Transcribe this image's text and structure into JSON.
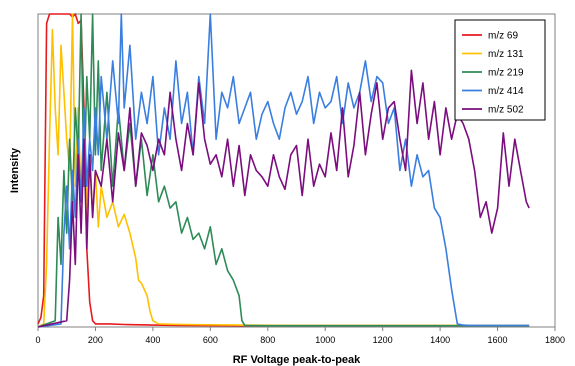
{
  "chart_data": {
    "type": "line",
    "title": "",
    "xlabel": "RF Voltage peak-to-peak",
    "ylabel": "Intensity",
    "xlim": [
      0,
      1800
    ],
    "ylim": [
      0,
      100
    ],
    "xticks": [
      0,
      200,
      400,
      600,
      800,
      1000,
      1200,
      1400,
      1600,
      1800
    ],
    "grid": false,
    "legend_position": "top-right",
    "series": [
      {
        "name": "m/z 69",
        "color": "#e8191d",
        "x": [
          0,
          10,
          20,
          30,
          40,
          50,
          60,
          70,
          80,
          90,
          100,
          110,
          120,
          130,
          140,
          150,
          160,
          170,
          180,
          190,
          200,
          250,
          300,
          400,
          500,
          700,
          900,
          1100,
          1300,
          1500,
          1710
        ],
        "y": [
          1,
          3,
          10,
          97,
          100,
          100,
          100,
          100,
          100,
          100,
          100,
          100,
          99,
          100,
          97,
          98,
          70,
          25,
          8,
          2,
          1,
          1,
          0.8,
          0.6,
          0.5,
          0.4,
          0.4,
          0.4,
          0.4,
          0.4,
          0.4
        ]
      },
      {
        "name": "m/z 131",
        "color": "#ffc000",
        "x": [
          0,
          20,
          30,
          40,
          50,
          60,
          70,
          80,
          90,
          100,
          110,
          120,
          130,
          140,
          150,
          160,
          170,
          180,
          190,
          200,
          210,
          220,
          240,
          260,
          280,
          300,
          320,
          340,
          350,
          360,
          370,
          380,
          390,
          400,
          420,
          500,
          700,
          900,
          1200,
          1710
        ],
        "y": [
          0,
          1,
          20,
          60,
          95,
          70,
          55,
          90,
          75,
          60,
          50,
          100,
          45,
          70,
          40,
          65,
          38,
          55,
          35,
          50,
          32,
          45,
          35,
          40,
          32,
          36,
          30,
          22,
          15,
          14,
          12,
          10,
          5,
          2,
          1,
          0.8,
          0.6,
          0.5,
          0.5,
          0.5
        ]
      },
      {
        "name": "m/z 219",
        "color": "#2e8b57",
        "x": [
          0,
          60,
          70,
          80,
          90,
          100,
          110,
          120,
          130,
          140,
          150,
          160,
          170,
          180,
          190,
          200,
          210,
          220,
          240,
          260,
          280,
          300,
          320,
          340,
          360,
          380,
          400,
          420,
          440,
          460,
          480,
          500,
          520,
          540,
          560,
          580,
          600,
          620,
          640,
          660,
          680,
          700,
          710,
          720,
          800,
          1000,
          1300,
          1600,
          1710
        ],
        "y": [
          0,
          2,
          35,
          20,
          50,
          30,
          60,
          40,
          70,
          55,
          100,
          45,
          80,
          60,
          100,
          55,
          85,
          50,
          75,
          45,
          70,
          50,
          65,
          45,
          60,
          42,
          55,
          40,
          45,
          38,
          40,
          30,
          35,
          28,
          30,
          25,
          32,
          20,
          25,
          18,
          15,
          10,
          2,
          0.5,
          0.4,
          0.4,
          0.4,
          0.4,
          0.4
        ]
      },
      {
        "name": "m/z 414",
        "color": "#3a7fe0",
        "x": [
          0,
          80,
          90,
          100,
          110,
          120,
          130,
          140,
          150,
          160,
          170,
          180,
          190,
          200,
          210,
          220,
          240,
          260,
          280,
          290,
          300,
          320,
          340,
          360,
          380,
          400,
          420,
          440,
          460,
          480,
          500,
          520,
          540,
          560,
          580,
          600,
          620,
          640,
          660,
          680,
          700,
          720,
          740,
          760,
          780,
          800,
          820,
          840,
          860,
          880,
          900,
          920,
          940,
          960,
          980,
          1000,
          1020,
          1040,
          1060,
          1080,
          1100,
          1120,
          1140,
          1160,
          1180,
          1200,
          1220,
          1240,
          1260,
          1280,
          1300,
          1320,
          1340,
          1360,
          1380,
          1400,
          1420,
          1440,
          1460,
          1480,
          1500,
          1600,
          1710
        ],
        "y": [
          0,
          1,
          30,
          45,
          25,
          50,
          35,
          60,
          40,
          70,
          45,
          60,
          50,
          70,
          55,
          80,
          60,
          85,
          65,
          100,
          70,
          90,
          60,
          75,
          65,
          80,
          55,
          70,
          60,
          85,
          65,
          75,
          55,
          80,
          65,
          100,
          60,
          75,
          70,
          80,
          65,
          70,
          75,
          60,
          68,
          72,
          65,
          60,
          70,
          75,
          68,
          72,
          80,
          65,
          75,
          70,
          72,
          80,
          65,
          78,
          70,
          75,
          85,
          72,
          80,
          78,
          65,
          70,
          50,
          60,
          45,
          55,
          48,
          50,
          38,
          35,
          25,
          12,
          1,
          0.6,
          0.5,
          0.5,
          0.5
        ]
      },
      {
        "name": "m/z 502",
        "color": "#7b0d7e",
        "x": [
          0,
          100,
          110,
          120,
          130,
          140,
          150,
          160,
          170,
          180,
          190,
          200,
          220,
          240,
          260,
          280,
          300,
          320,
          340,
          360,
          380,
          400,
          420,
          440,
          460,
          480,
          500,
          520,
          540,
          560,
          580,
          600,
          620,
          640,
          660,
          680,
          700,
          720,
          740,
          760,
          780,
          800,
          820,
          840,
          860,
          880,
          900,
          920,
          940,
          960,
          980,
          1000,
          1020,
          1040,
          1060,
          1080,
          1100,
          1120,
          1140,
          1160,
          1180,
          1200,
          1220,
          1240,
          1260,
          1280,
          1300,
          1320,
          1340,
          1360,
          1380,
          1400,
          1420,
          1440,
          1460,
          1480,
          1500,
          1520,
          1540,
          1560,
          1580,
          1600,
          1620,
          1640,
          1660,
          1680,
          1700,
          1710
        ],
        "y": [
          0,
          2,
          15,
          40,
          20,
          55,
          30,
          60,
          25,
          55,
          35,
          50,
          45,
          60,
          40,
          62,
          50,
          70,
          45,
          62,
          58,
          50,
          60,
          55,
          75,
          60,
          50,
          65,
          55,
          78,
          60,
          52,
          55,
          48,
          60,
          45,
          58,
          42,
          55,
          50,
          48,
          45,
          55,
          48,
          44,
          55,
          58,
          42,
          60,
          45,
          52,
          48,
          62,
          50,
          70,
          48,
          58,
          75,
          55,
          68,
          78,
          60,
          70,
          72,
          60,
          50,
          82,
          65,
          78,
          60,
          72,
          55,
          70,
          60,
          68,
          65,
          60,
          50,
          35,
          40,
          30,
          38,
          62,
          45,
          60,
          50,
          40,
          38
        ]
      }
    ]
  }
}
